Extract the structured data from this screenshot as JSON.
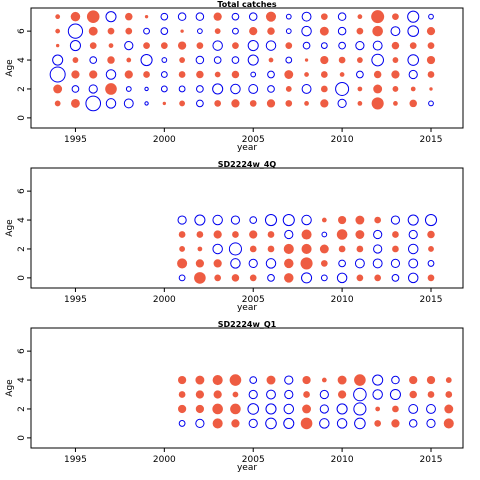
{
  "colors": {
    "positive": "#EE5C42",
    "negative": "#0000EE"
  },
  "chart_data": [
    {
      "type": "scatter",
      "title": "Total catches",
      "xlabel": "year",
      "ylabel": "Age",
      "xlim": [
        1992.5,
        2016.8
      ],
      "ylim": [
        -0.7,
        7.6
      ],
      "xticks": [
        1995,
        2000,
        2005,
        2010,
        2015
      ],
      "yticks": [
        0,
        2,
        4,
        6
      ],
      "grid": false,
      "legend": "none",
      "x_range": [
        1994,
        2015
      ],
      "ages": [
        1,
        2,
        3,
        4,
        5,
        6,
        7
      ],
      "residuals": [
        [
          0.15,
          0.35,
          -1.0,
          -0.45,
          0.05,
          0.1,
          0.1
        ],
        [
          0.35,
          -0.2,
          0.3,
          0.15,
          -0.45,
          -0.9,
          0.4
        ],
        [
          -0.95,
          -0.3,
          0.3,
          -0.2,
          0.2,
          0.35,
          0.7
        ],
        [
          -0.4,
          0.6,
          -0.4,
          0.25,
          0.1,
          0.2,
          -0.45
        ],
        [
          -0.35,
          -0.1,
          0.3,
          0.1,
          -0.3,
          0.2,
          0.25
        ],
        [
          -0.05,
          -0.05,
          0.2,
          -0.55,
          0.2,
          -0.15,
          0.05
        ],
        [
          0.05,
          -0.15,
          -0.15,
          -0.1,
          0.2,
          -0.2,
          -0.2
        ],
        [
          0.15,
          -0.15,
          0.2,
          0.15,
          0.3,
          0.05,
          -0.25
        ],
        [
          -0.2,
          -0.2,
          0.25,
          -0.25,
          0.2,
          -0.1,
          -0.25
        ],
        [
          0.2,
          -0.45,
          0.15,
          -0.2,
          -0.4,
          0.15,
          0.3
        ],
        [
          0.3,
          -0.4,
          0.25,
          -0.2,
          0.2,
          -0.15,
          -0.2
        ],
        [
          0.2,
          -0.35,
          -0.1,
          -0.45,
          -0.45,
          0.3,
          -0.25
        ],
        [
          0.3,
          -0.2,
          -0.2,
          0.1,
          -0.4,
          0.25,
          0.45
        ],
        [
          0.2,
          0.15,
          0.35,
          -0.15,
          0.2,
          -0.1,
          -0.1
        ],
        [
          0.1,
          -0.35,
          0.1,
          0.05,
          -0.2,
          -0.4,
          -0.35
        ],
        [
          0.3,
          0.2,
          0.2,
          0.3,
          -0.15,
          0.35,
          0.2
        ],
        [
          -0.3,
          -0.75,
          0.1,
          0.2,
          -0.2,
          -0.25,
          -0.25
        ],
        [
          0.1,
          0.1,
          -0.2,
          0.15,
          -0.3,
          0.2,
          0.1
        ],
        [
          0.65,
          0.35,
          0.25,
          -0.6,
          -0.35,
          0.5,
          0.75
        ],
        [
          0.1,
          0.15,
          0.3,
          0.15,
          0.25,
          -0.35,
          0.2
        ],
        [
          0.25,
          0.1,
          -0.3,
          -0.5,
          0.2,
          -0.5,
          -0.55
        ],
        [
          -0.1,
          0.05,
          0.2,
          0.3,
          0.2,
          0.3,
          -0.1
        ]
      ]
    },
    {
      "type": "scatter",
      "title": "SD2224w_4Q",
      "xlabel": "year",
      "ylabel": "Age",
      "xlim": [
        1992.5,
        2016.8
      ],
      "ylim": [
        -0.7,
        7.6
      ],
      "xticks": [
        1995,
        2000,
        2005,
        2010,
        2015
      ],
      "yticks": [
        0,
        2,
        4,
        6
      ],
      "grid": false,
      "legend": "none",
      "x_range": [
        2001,
        2015
      ],
      "ages": [
        0,
        1,
        2,
        3,
        4
      ],
      "residuals": [
        [
          -0.15,
          0.45,
          0.15,
          0.2,
          -0.3
        ],
        [
          0.6,
          0.3,
          0.1,
          0.2,
          -0.45
        ],
        [
          0.2,
          0.3,
          -0.4,
          0.3,
          -0.4
        ],
        [
          0.25,
          -0.4,
          -0.65,
          0.2,
          -0.3
        ],
        [
          0.2,
          -0.3,
          0.2,
          0.3,
          -0.2
        ],
        [
          -0.2,
          -0.4,
          0.2,
          0.2,
          -0.55
        ],
        [
          0.4,
          0.4,
          0.45,
          -0.3,
          -0.55
        ],
        [
          -0.45,
          0.65,
          0.45,
          0.45,
          -0.4
        ],
        [
          -0.15,
          0.2,
          0.35,
          -0.1,
          0.1
        ],
        [
          -0.4,
          -0.2,
          0.2,
          0.5,
          0.3
        ],
        [
          0.2,
          -0.35,
          0.2,
          0.35,
          0.35
        ],
        [
          0.2,
          -0.35,
          -0.3,
          -0.3,
          0.2
        ],
        [
          -0.2,
          -0.3,
          0.2,
          0.2,
          -0.3
        ],
        [
          -0.4,
          -0.35,
          -0.4,
          -0.3,
          -0.45
        ],
        [
          0.2,
          -0.15,
          0.15,
          0.25,
          -0.55
        ]
      ]
    },
    {
      "type": "scatter",
      "title": "SD2224w_Q1",
      "xlabel": "year",
      "ylabel": "Age",
      "xlim": [
        1992.5,
        2016.8
      ],
      "ylim": [
        -0.7,
        7.6
      ],
      "xticks": [
        1995,
        2000,
        2005,
        2010,
        2015
      ],
      "yticks": [
        0,
        2,
        4,
        6
      ],
      "grid": false,
      "legend": "none",
      "x_range": [
        2001,
        2016
      ],
      "ages": [
        1,
        2,
        3,
        4
      ],
      "residuals": [
        [
          -0.15,
          0.3,
          0.2,
          0.3
        ],
        [
          -0.3,
          0.3,
          0.3,
          0.35
        ],
        [
          0.45,
          0.5,
          0.3,
          0.45
        ],
        [
          0.3,
          0.5,
          0.15,
          0.6
        ],
        [
          -0.3,
          -0.5,
          -0.3,
          -0.2
        ],
        [
          -0.5,
          -0.45,
          -0.35,
          0.35
        ],
        [
          -0.45,
          -0.4,
          -0.3,
          -0.3
        ],
        [
          0.6,
          0.35,
          0.2,
          0.3
        ],
        [
          -0.4,
          -0.3,
          -0.3,
          0.1
        ],
        [
          -0.4,
          -0.45,
          0.3,
          0.35
        ],
        [
          -0.5,
          -0.65,
          -0.7,
          0.6
        ],
        [
          0.2,
          0.1,
          -0.4,
          -0.45
        ],
        [
          0.3,
          0.2,
          -0.45,
          -0.25
        ],
        [
          -0.25,
          -0.35,
          0.25,
          0.3
        ],
        [
          -0.3,
          -0.35,
          0.2,
          0.3
        ],
        [
          0.45,
          0.35,
          0.2,
          0.15
        ]
      ]
    }
  ]
}
